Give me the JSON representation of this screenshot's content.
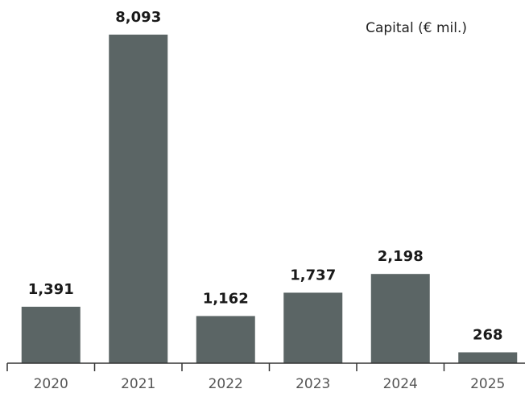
{
  "chart_data": {
    "type": "bar",
    "legend_text": "Capital (€ mil.)",
    "categories": [
      "2020",
      "2021",
      "2022",
      "2023",
      "2024",
      "2025"
    ],
    "values": [
      1391,
      8093,
      1162,
      1737,
      2198,
      268
    ],
    "value_labels": [
      "1,391",
      "8,093",
      "1,162",
      "1,737",
      "2,198",
      "268"
    ],
    "ylim": [
      0,
      8093
    ],
    "grid": false,
    "legend_position": "top-right",
    "colors": {
      "bar": "#5b6565",
      "axis": "#333333",
      "value_text": "#1a1a1a",
      "tick_text": "#555555"
    }
  }
}
